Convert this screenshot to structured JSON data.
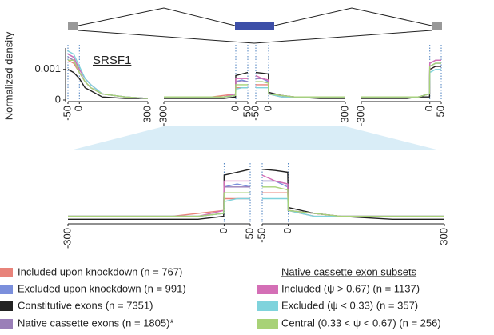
{
  "chart_data": {
    "type": "line",
    "title": "SRSF1",
    "y_label": "Normalized density",
    "ylim": [
      0,
      0.0017
    ],
    "yticks": [
      0,
      0.001
    ],
    "zoom_ylim": [
      0,
      0.00095
    ],
    "legend_title": "Native cassette exon subsets",
    "panels": [
      {
        "xlim": [
          -50,
          300
        ],
        "xticks": [
          -50,
          0,
          300
        ],
        "x": [
          -50,
          -25,
          0,
          25,
          50,
          100,
          200,
          300
        ]
      },
      {
        "xlim": [
          -300,
          50
        ],
        "xticks": [
          -300,
          0,
          50
        ],
        "x": [
          -300,
          -200,
          -100,
          -50,
          -1,
          0,
          25,
          50
        ]
      },
      {
        "xlim": [
          -50,
          300
        ],
        "xticks": [
          -50,
          0,
          300
        ],
        "x": [
          -50,
          -25,
          -1,
          0,
          50,
          100,
          200,
          300
        ]
      },
      {
        "xlim": [
          -300,
          50
        ],
        "xticks": [
          -300,
          0,
          50
        ],
        "x": [
          -300,
          -200,
          -100,
          -50,
          -1,
          0,
          25,
          50
        ]
      }
    ],
    "series": [
      {
        "name": "Included upon knockdown (n = 767)",
        "color": "#e8837a",
        "values": [
          [
            0.0013,
            0.0012,
            0.0009,
            0.0006,
            0.0004,
            0.0002,
            0.0001,
            5e-05
          ],
          [
            0.0001,
            0.0001,
            0.0001,
            0.00015,
            0.0002,
            0.0004,
            0.0004,
            0.0004
          ],
          [
            0.0005,
            0.0005,
            0.0005,
            0.0002,
            0.0001,
            0.0001,
            0.0001,
            0.0001
          ],
          [
            0.0001,
            0.0001,
            0.0001,
            0.0001,
            0.0002,
            0.001,
            0.0011,
            0.0011
          ]
        ]
      },
      {
        "name": "Excluded upon knockdown (n = 991)",
        "color": "#7b8fdc",
        "values": [
          [
            0.0015,
            0.0014,
            0.001,
            0.0007,
            0.0005,
            0.0002,
            0.0001,
            5e-05
          ],
          [
            0.0001,
            0.0001,
            0.0001,
            0.0001,
            0.00015,
            0.0006,
            0.00065,
            0.0006
          ],
          [
            0.0007,
            0.0007,
            0.0006,
            0.0002,
            0.00015,
            0.0001,
            0.0001,
            0.0001
          ],
          [
            0.0001,
            0.0001,
            0.0001,
            0.0001,
            0.0002,
            0.0011,
            0.0012,
            0.0012
          ]
        ]
      },
      {
        "name": "Constitutive exons (n = 7351)",
        "color": "#222222",
        "values": [
          [
            0.001,
            0.0009,
            0.0007,
            0.0004,
            0.0003,
            0.0001,
            5e-05,
            5e-05
          ],
          [
            5e-05,
            5e-05,
            5e-05,
            5e-05,
            0.0001,
            0.0008,
            0.00085,
            0.0009
          ],
          [
            0.0009,
            0.00088,
            0.00085,
            0.00025,
            0.00015,
            0.0001,
            5e-05,
            5e-05
          ],
          [
            5e-05,
            5e-05,
            5e-05,
            0.0001,
            0.0001,
            0.001,
            0.0011,
            0.0011
          ]
        ]
      },
      {
        "name": "Native cassette exons (n = 1805)*",
        "color": "#9a7fb8",
        "values": [
          [
            0.0014,
            0.0013,
            0.0009,
            0.0006,
            0.0004,
            0.0002,
            0.0001,
            5e-05
          ],
          [
            0.0001,
            0.0001,
            0.0001,
            0.0001,
            0.00015,
            0.0006,
            0.0006,
            0.0006
          ],
          [
            0.0007,
            0.0007,
            0.00065,
            0.0002,
            0.00015,
            0.0001,
            0.0001,
            0.0001
          ],
          [
            0.0001,
            0.0001,
            0.0001,
            0.0001,
            0.0002,
            0.0012,
            0.0013,
            0.0013
          ]
        ]
      },
      {
        "name": "Included (ψ > 0.67) (n = 1137)",
        "color": "#d46fb6",
        "values": [
          [
            0.0015,
            0.0014,
            0.001,
            0.0007,
            0.0005,
            0.0002,
            0.0001,
            5e-05
          ],
          [
            0.0001,
            0.0001,
            0.0001,
            0.0001,
            0.0002,
            0.0007,
            0.0007,
            0.0007
          ],
          [
            0.0008,
            0.0007,
            0.00065,
            0.0002,
            0.00015,
            0.0001,
            0.0001,
            0.0001
          ],
          [
            0.0001,
            0.0001,
            0.0001,
            0.0001,
            0.0002,
            0.0012,
            0.0013,
            0.0013
          ]
        ]
      },
      {
        "name": "Excluded (ψ < 0.33) (n = 357)",
        "color": "#7fd3dc",
        "values": [
          [
            0.0016,
            0.0015,
            0.0011,
            0.0007,
            0.0005,
            0.0002,
            0.0001,
            5e-05
          ],
          [
            0.0001,
            0.0001,
            0.0001,
            0.0001,
            0.00015,
            0.00035,
            0.0004,
            0.0004
          ],
          [
            0.0004,
            0.0004,
            0.0004,
            0.0002,
            0.0001,
            0.0001,
            0.0001,
            0.0001
          ],
          [
            0.0001,
            0.0001,
            0.0001,
            0.0001,
            0.0002,
            0.0009,
            0.001,
            0.001
          ]
        ]
      },
      {
        "name": "Central (0.33 < ψ < 0.67) (n = 256)",
        "color": "#a8d277",
        "values": [
          [
            0.0013,
            0.0013,
            0.0009,
            0.0006,
            0.0004,
            0.0002,
            0.0001,
            5e-05
          ],
          [
            0.0001,
            0.0001,
            0.0001,
            0.0001,
            0.00015,
            0.0005,
            0.0005,
            0.0005
          ],
          [
            0.0006,
            0.0006,
            0.00055,
            0.0002,
            0.00015,
            0.0001,
            0.0001,
            0.0001
          ],
          [
            0.0001,
            0.0001,
            0.0001,
            0.0001,
            0.0002,
            0.0011,
            0.0012,
            0.0012
          ]
        ]
      }
    ]
  }
}
